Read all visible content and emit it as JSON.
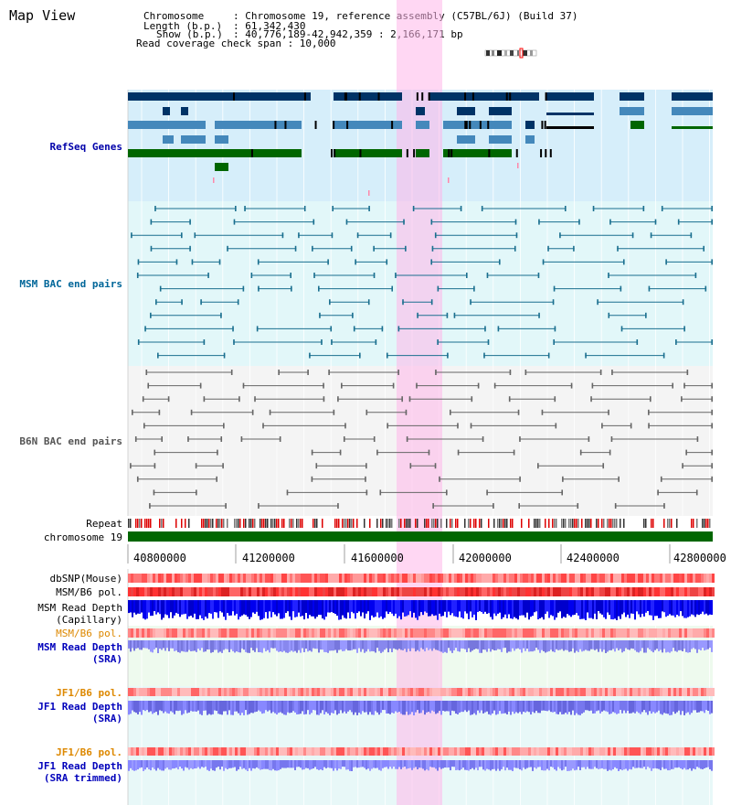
{
  "page_title": "Map View",
  "header": {
    "chromosome_key": "Chromosome",
    "chromosome_value": ": Chromosome 19, reference assembly (C57BL/6J) (Build 37)",
    "length_key": "Length (b.p.)",
    "length_value": ": 61,342,430",
    "show_key": "Show (b.p.)",
    "show_value": ": 40,776,189-42,942,359 : 2,166,171 bp",
    "coverage_text": "Read coverage check span : 10,000"
  },
  "tracks": {
    "refseq_label": "RefSeq Genes",
    "msm_bac_label": "MSM BAC end pairs",
    "b6n_bac_label": "B6N BAC end pairs",
    "repeat_label": "Repeat",
    "chromosome_label": "chromosome 19",
    "dbsnp_label": "dbSNP(Mouse)",
    "msm_b6_pol_label": "MSM/B6 pol.",
    "msm_read_depth_cap_label": "MSM Read Depth\n(Capillary)",
    "msm_b6_pol2_label": "MSM/B6 pol.",
    "msm_read_depth_sra_label": "MSM Read Depth\n(SRA)",
    "jf1_b6_pol_label": "JF1/B6 pol.",
    "jf1_read_depth_sra_label": "JF1 Read Depth\n(SRA)",
    "jf1_b6_pol2_label": "JF1/B6 pol.",
    "jf1_read_depth_trim_label": "JF1 Read Depth\n(SRA trimmed)"
  },
  "axis": {
    "ticks": [
      "40800000",
      "41200000",
      "41600000",
      "42000000",
      "42400000",
      "42800000"
    ]
  },
  "colors": {
    "refseq_text": "#0000aa",
    "msm_text": "#006699",
    "b6n_text": "#555555",
    "orange_text": "#dd8800",
    "blue_text": "#0000bb",
    "highlight": "#ffb6ea",
    "chromosome_bar": "#006600",
    "gene_dark": "#003366",
    "gene_mid": "#4488bb",
    "gene_green": "#006600"
  }
}
